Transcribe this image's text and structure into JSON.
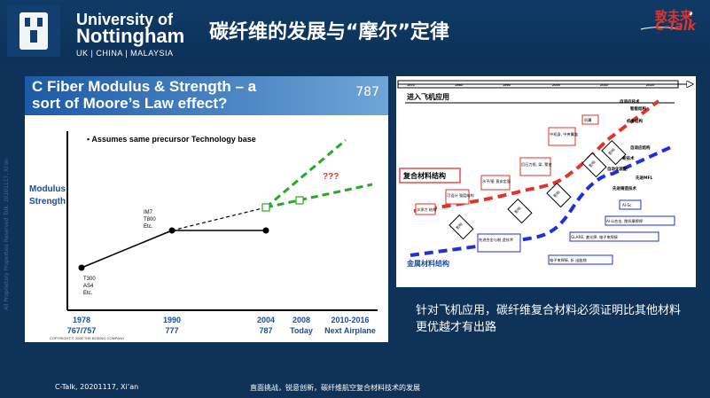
{
  "header": {
    "logo_line1": "University of",
    "logo_line2": "Nottingham",
    "logo_line3": "UK | CHINA | MALAYSIA",
    "slide_title": "碳纤维的发展与“摩尔”定律",
    "brand_cn": "致未来",
    "brand_en": "C-Talk"
  },
  "left_chart": {
    "title_line1": "C Fiber Modulus & Strength – a",
    "title_line2": "sort of Moore’s Law effect?",
    "right_tag": "787",
    "note": "• Assumes same precursor Technology base",
    "y_label_line1": "Modulus;",
    "y_label_line2": "Strength",
    "points": [
      {
        "label": [
          "T300",
          "AS4",
          "Etc."
        ]
      },
      {
        "label": [
          "IM7",
          "T800",
          "Etc."
        ]
      }
    ],
    "x_ticks": [
      {
        "year": "1978",
        "sub": "767/757"
      },
      {
        "year": "1990",
        "sub": "777"
      },
      {
        "year": "2004",
        "sub": "787"
      },
      {
        "year": "2008",
        "sub": "Today"
      },
      {
        "year": "2010-2016",
        "sub": "Next Airplane"
      }
    ],
    "question": "???",
    "copyright": "COPYRIGHT © 2006 THE BOEING COMPANY"
  },
  "right_diagram": {
    "timeline_ticks": [
      "1970",
      "1980",
      "1990",
      "2000",
      "2010",
      "2020"
    ],
    "top_left_label": "进入飞机应用",
    "composite_label": "复合材料结构",
    "metal_label": "金属材料结构",
    "red_boxes": [
      "次承力\n结构",
      "可设计\n强度结构",
      "水平/垂\n直安定面",
      "后压力框,\n梁, 蒙皮",
      "中机身,\n中央翼盒",
      "机翼"
    ],
    "red_right": [
      "自适应技术",
      "智能结构",
      "机身结构"
    ],
    "blue_right": [
      "自适应结构",
      "自诊断技术",
      "自动化装配",
      "先进MFL",
      "先进铸造技术"
    ],
    "blue_boxes": [
      "先进合金与制\n造技术",
      "电子束焊接, 折  出曲翘",
      "GLARE, 激光焊, 电子束焊接",
      "Al-Li合金, 搅拌摩擦焊",
      "Al-Sc"
    ],
    "tags": [
      "影响",
      "影响",
      "影响",
      "影响",
      "影响"
    ]
  },
  "caption": "针对飞机应用，碳纤维复合材料必须证明比其他材料更优越才有出路",
  "footer": {
    "left": "C-Talk, 20201117, Xi’an",
    "center": "直面挑战，锐意创新，碳纤维航空复合材料技术的发展"
  },
  "sideways_text": "All Proprietary Properties Reserved Talk. 20201117, Xi'an"
}
